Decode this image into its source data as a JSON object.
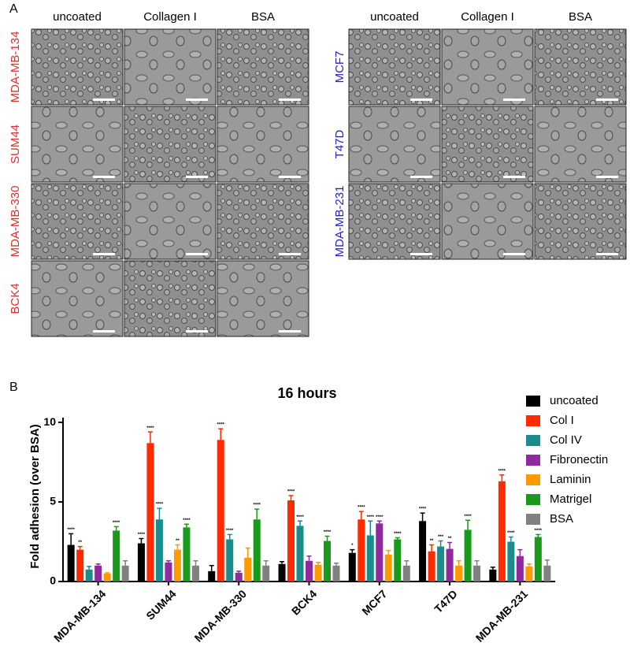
{
  "panel_labels": [
    "A",
    "B"
  ],
  "panel_a": {
    "left": {
      "columns": [
        "uncoated",
        "Collagen I",
        "BSA"
      ],
      "rows": [
        "MDA-MB-134",
        "SUM44",
        "MDA-MB-330",
        "BCK4"
      ],
      "label_color": "#e0302a"
    },
    "right": {
      "columns": [
        "uncoated",
        "Collagen I",
        "BSA"
      ],
      "rows": [
        "MCF7",
        "T47D",
        "MDA-MB-231"
      ],
      "label_color": "#2222cc"
    }
  },
  "chart_data": {
    "type": "bar",
    "title": "16 hours",
    "y_label": "Fold adhesion (over BSA)",
    "categories": [
      "MDA-MB-134",
      "SUM44",
      "MDA-MB-330",
      "BCK4",
      "MCF7",
      "T47D",
      "MDA-MB-231"
    ],
    "ylim": [
      0,
      10.3
    ],
    "yticks": [
      0,
      5,
      10
    ],
    "series": [
      {
        "name": "uncoated",
        "color": "#000000",
        "values": [
          2.3,
          2.4,
          0.65,
          1.1,
          1.8,
          3.8,
          0.75
        ],
        "errors": [
          0.7,
          0.3,
          0.35,
          0.15,
          0.2,
          0.5,
          0.15
        ],
        "annotations": [
          "****",
          "****",
          null,
          null,
          "*",
          "****",
          null
        ]
      },
      {
        "name": "Col I",
        "color": "#ff2a00",
        "values": [
          2.0,
          8.7,
          8.9,
          5.1,
          3.9,
          1.9,
          6.3
        ],
        "errors": [
          0.2,
          0.7,
          0.7,
          0.3,
          0.5,
          0.4,
          0.4
        ],
        "annotations": [
          "**",
          "****",
          "****",
          "****",
          "****",
          "**",
          "****"
        ]
      },
      {
        "name": "Col IV",
        "color": "#1a8c8c",
        "values": [
          0.75,
          3.9,
          2.65,
          3.5,
          2.9,
          2.2,
          2.5
        ],
        "errors": [
          0.2,
          0.7,
          0.3,
          0.3,
          0.9,
          0.35,
          0.3
        ],
        "annotations": [
          null,
          "****",
          "****",
          "****",
          "****",
          "***",
          "****"
        ]
      },
      {
        "name": "Fibronectin",
        "color": "#8e2a9e",
        "values": [
          1.0,
          1.2,
          0.55,
          1.3,
          3.65,
          2.05,
          1.6
        ],
        "errors": [
          0.1,
          0.1,
          0.1,
          0.3,
          0.15,
          0.4,
          0.4
        ],
        "annotations": [
          null,
          null,
          null,
          null,
          "****",
          "**",
          null
        ]
      },
      {
        "name": "Laminin",
        "color": "#ff9900",
        "values": [
          0.5,
          2.0,
          1.5,
          1.05,
          1.7,
          1.0,
          0.95
        ],
        "errors": [
          0.05,
          0.3,
          0.6,
          0.15,
          0.25,
          0.3,
          0.15
        ],
        "annotations": [
          null,
          "**",
          null,
          null,
          null,
          null,
          null
        ]
      },
      {
        "name": "Matrigel",
        "color": "#1a9a1a",
        "values": [
          3.2,
          3.4,
          3.9,
          2.55,
          2.65,
          3.25,
          2.8
        ],
        "errors": [
          0.25,
          0.2,
          0.65,
          0.3,
          0.1,
          0.6,
          0.15
        ],
        "annotations": [
          "****",
          "****",
          "****",
          "****",
          "****",
          "****",
          "****"
        ]
      },
      {
        "name": "BSA",
        "color": "#808080",
        "values": [
          1.0,
          1.0,
          1.0,
          1.0,
          1.0,
          1.0,
          1.0
        ],
        "errors": [
          0.3,
          0.3,
          0.3,
          0.15,
          0.3,
          0.3,
          0.35
        ],
        "annotations": [
          null,
          null,
          null,
          null,
          null,
          null,
          null
        ]
      }
    ]
  }
}
